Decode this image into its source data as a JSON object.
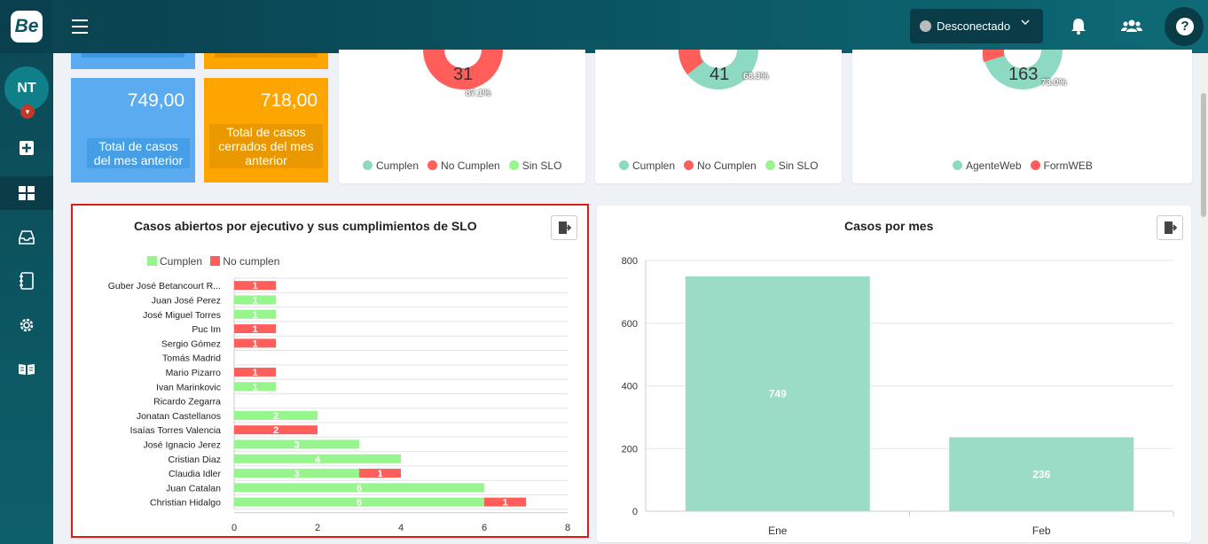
{
  "header": {
    "logo": "Be",
    "status": "Desconectado"
  },
  "user": {
    "initials": "NT"
  },
  "tiles": [
    {
      "value": "749,00",
      "label1": "Total de casos",
      "label2": "del mes anterior",
      "label3": "",
      "color": "#5aabf0"
    },
    {
      "value": "718,00",
      "label1": "Total de casos",
      "label2": "cerrados del mes",
      "label3": "anterior",
      "color": "#ffa500"
    }
  ],
  "donuts": [
    {
      "number": "31",
      "percent": "87.1%",
      "legend": [
        "Cumplen",
        "No Cumplen",
        "Sin SLO"
      ]
    },
    {
      "number": "41",
      "percent": "68.3%",
      "legend": [
        "Cumplen",
        "No Cumplen",
        "Sin SLO"
      ]
    },
    {
      "number": "163",
      "percent": "73.0%",
      "legend": [
        "AgenteWeb",
        "FormWEB"
      ]
    }
  ],
  "colors": {
    "teal": "#8dd9c1",
    "red": "#ff5e5b",
    "green": "#96f58c",
    "bar": "#9adcc6"
  },
  "chart_data": [
    {
      "type": "bar",
      "title": "Casos abiertos por ejecutivo y sus cumplimientos de SLO",
      "orientation": "horizontal",
      "stacked": true,
      "categories": [
        "Guber José Betancourt R...",
        "Juan José Perez",
        "José Miguel Torres",
        "Puc Im",
        "Sergio Gómez",
        "Tomás Madrid",
        "Mario Pizarro",
        "Ivan Marinkovic",
        "Ricardo Zegarra",
        "Jonatan Castellanos",
        "Isaías Torres Valencia",
        "José Ignacio Jerez",
        "Cristian Diaz",
        "Claudia Idler",
        "Juan Catalan",
        "Christian Hidalgo"
      ],
      "series": [
        {
          "name": "Cumplen",
          "color": "#96f58c",
          "values": [
            0,
            1,
            1,
            0,
            0,
            0,
            0,
            1,
            0,
            2,
            0,
            3,
            4,
            3,
            6,
            6
          ]
        },
        {
          "name": "No cumplen",
          "color": "#ff5e5b",
          "values": [
            1,
            0,
            0,
            1,
            1,
            0,
            1,
            0,
            0,
            0,
            2,
            0,
            0,
            1,
            0,
            1
          ]
        }
      ],
      "xlim": [
        0,
        8
      ],
      "xticks": [
        "0",
        "2",
        "4",
        "6",
        "8"
      ],
      "legend_position": "top-left"
    },
    {
      "type": "bar",
      "title": "Casos por mes",
      "categories": [
        "Ene",
        "Feb"
      ],
      "values": [
        749,
        236
      ],
      "labels": [
        "749",
        "236"
      ],
      "ylim": [
        0,
        800
      ],
      "yticks": [
        "0",
        "200",
        "400",
        "600",
        "800"
      ]
    }
  ]
}
